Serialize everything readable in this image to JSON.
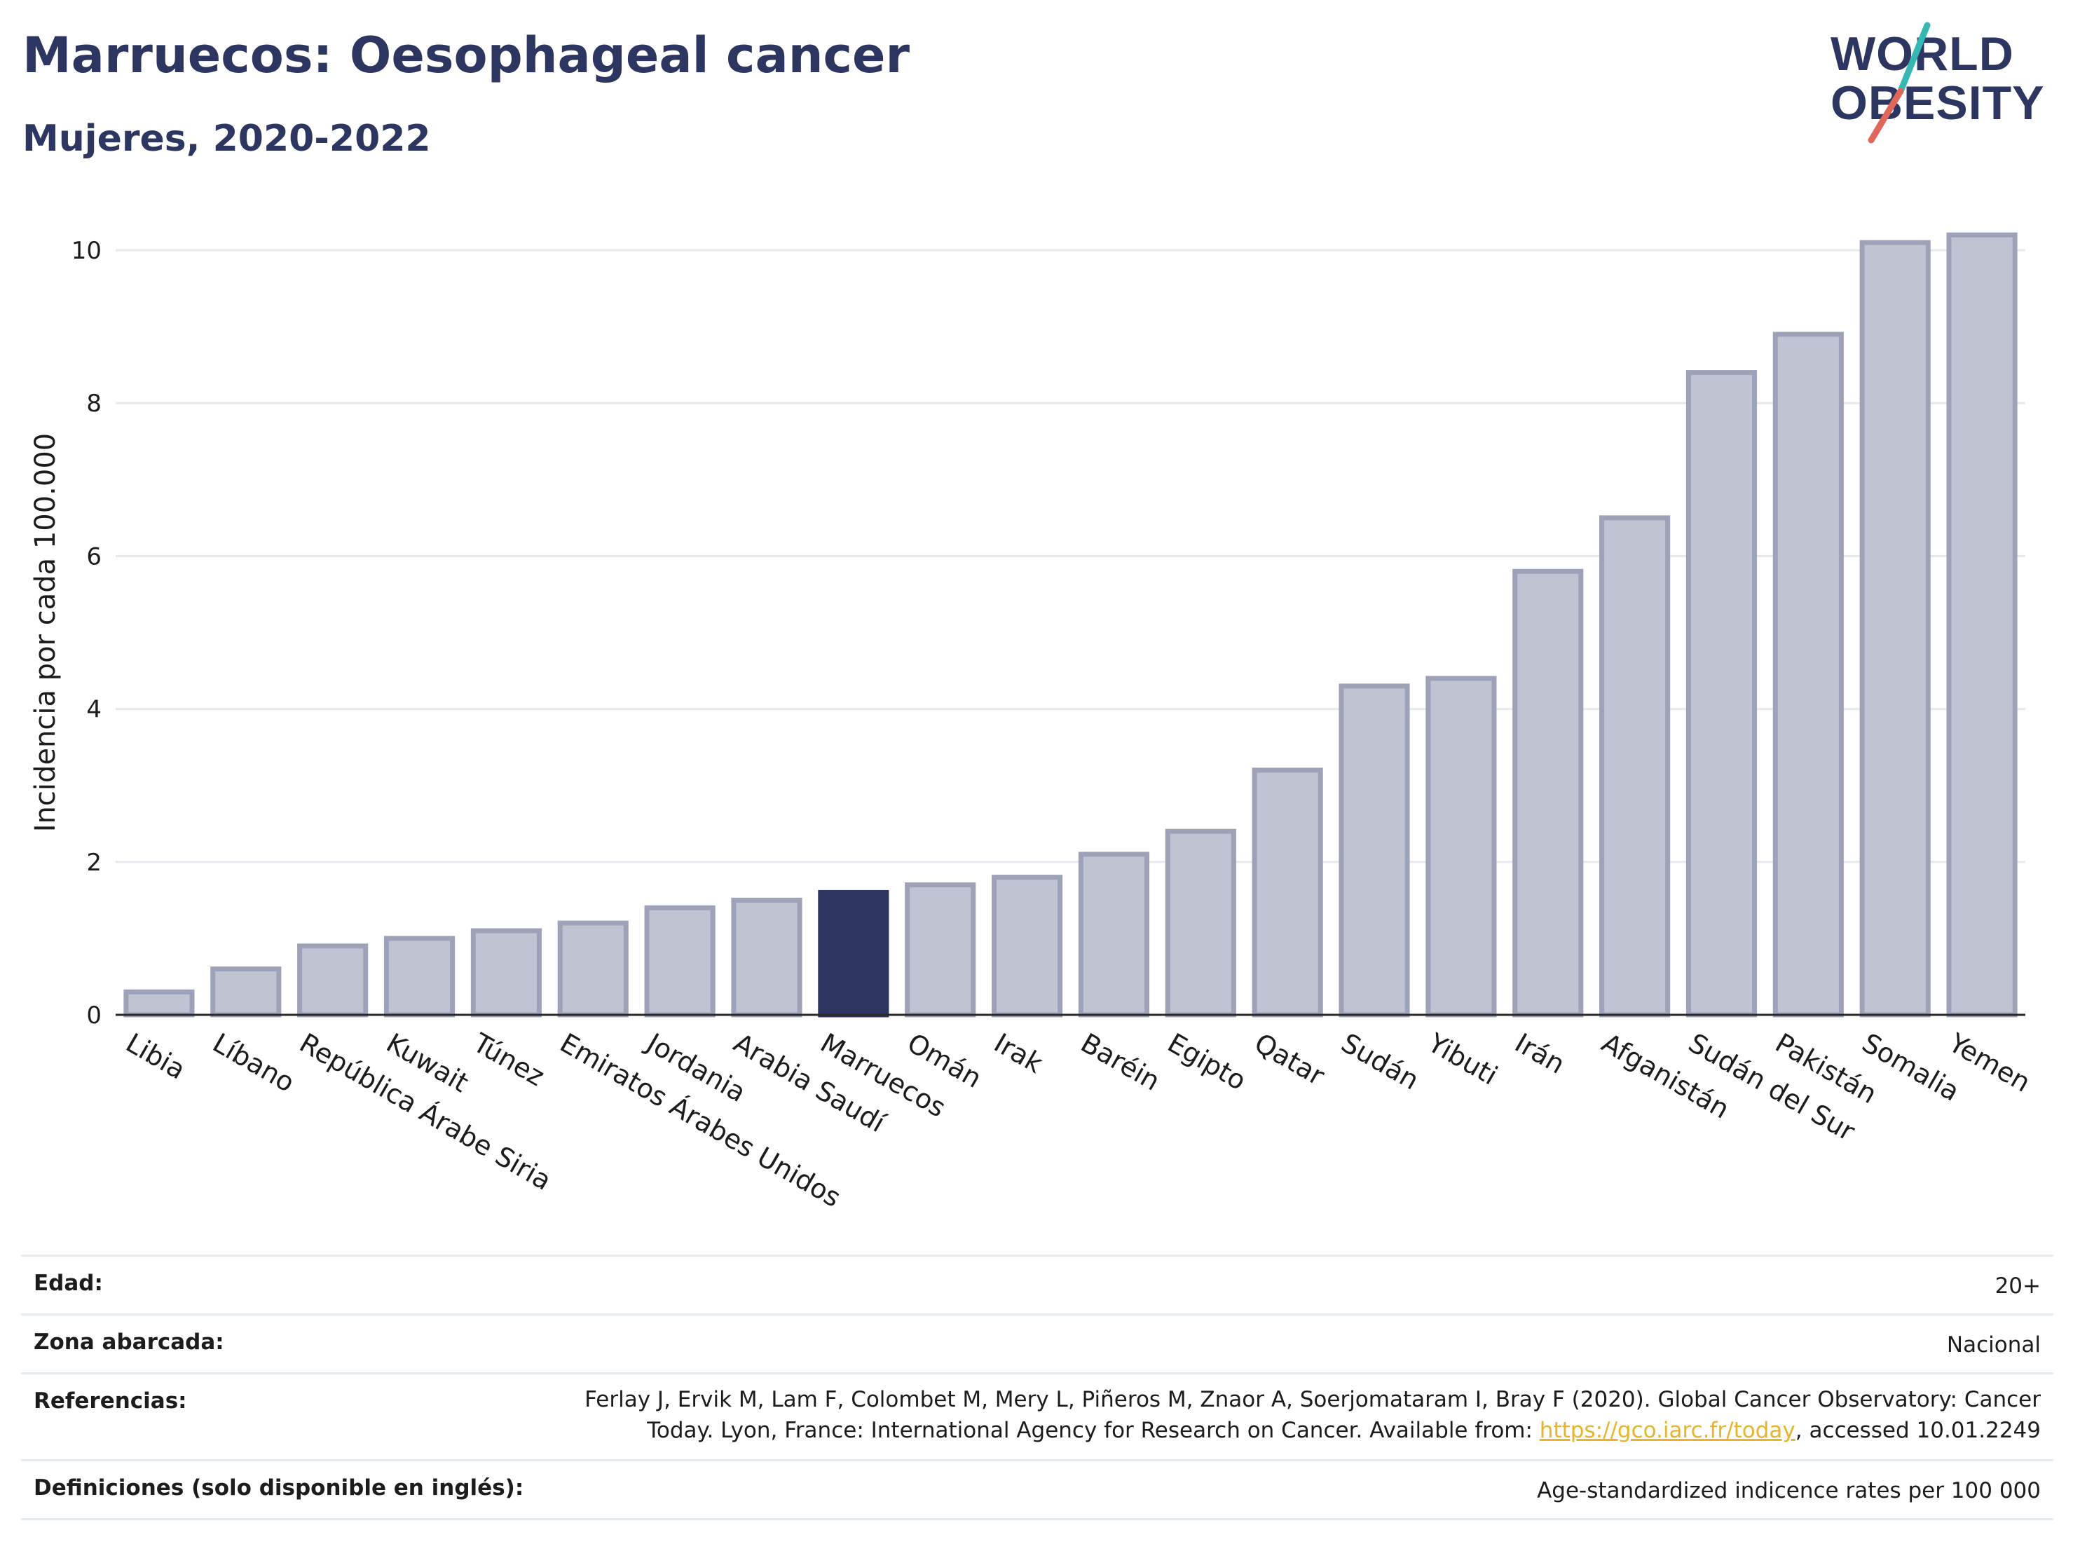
{
  "title": "Marruecos: Oesophageal cancer",
  "subtitle": "Mujeres, 2020-2022",
  "logo": {
    "line1": "WORLD",
    "line2": "OBESITY",
    "colors": {
      "text": "#2d3561",
      "slash_red": "#e0685a",
      "slash_teal": "#36b7b4"
    }
  },
  "chart_data": {
    "type": "bar",
    "title": "Marruecos: Oesophageal cancer",
    "subtitle": "Mujeres, 2020-2022",
    "xlabel": "",
    "ylabel": "Incidencia por cada 100.000",
    "ylim": [
      0,
      10.5
    ],
    "yticks": [
      0,
      2,
      4,
      6,
      8,
      10
    ],
    "grid": true,
    "highlight": "Marruecos",
    "colors": {
      "bar": "#c0c3d1",
      "bar_border": "#9ea2b8",
      "highlight": "#2d3561"
    },
    "categories": [
      "Libia",
      "Líbano",
      "República Árabe Siria",
      "Kuwait",
      "Túnez",
      "Emiratos Árabes Unidos",
      "Jordania",
      "Arabia Saudí",
      "Marruecos",
      "Omán",
      "Irak",
      "Baréin",
      "Egipto",
      "Qatar",
      "Sudán",
      "Yibuti",
      "Irán",
      "Afganistán",
      "Sudán del Sur",
      "Pakistán",
      "Somalia",
      "Yemen"
    ],
    "values": [
      0.3,
      0.6,
      0.9,
      1.0,
      1.1,
      1.2,
      1.4,
      1.5,
      1.6,
      1.7,
      1.8,
      2.1,
      2.4,
      3.2,
      4.3,
      4.4,
      5.8,
      6.5,
      8.4,
      8.9,
      10.1,
      10.2
    ]
  },
  "meta": {
    "edad_label": "Edad:",
    "edad_value": "20+",
    "zona_label": "Zona abarcada:",
    "zona_value": "Nacional",
    "ref_label": "Referencias:",
    "ref_line1": "Ferlay J, Ervik M, Lam F, Colombet M, Mery L, Piñeros M, Znaor A, Soerjomataram I, Bray F (2020). Global Cancer Observatory: Cancer",
    "ref_line2_pre": "Today. Lyon, France: International Agency for Research on Cancer. Available from: ",
    "ref_link": "https://gco.iarc.fr/today",
    "ref_line2_post": ", accessed 10.01.2249",
    "def_label": "Definiciones (solo disponible en inglés):",
    "def_value": "Age-standardized indicence rates per 100 000"
  }
}
